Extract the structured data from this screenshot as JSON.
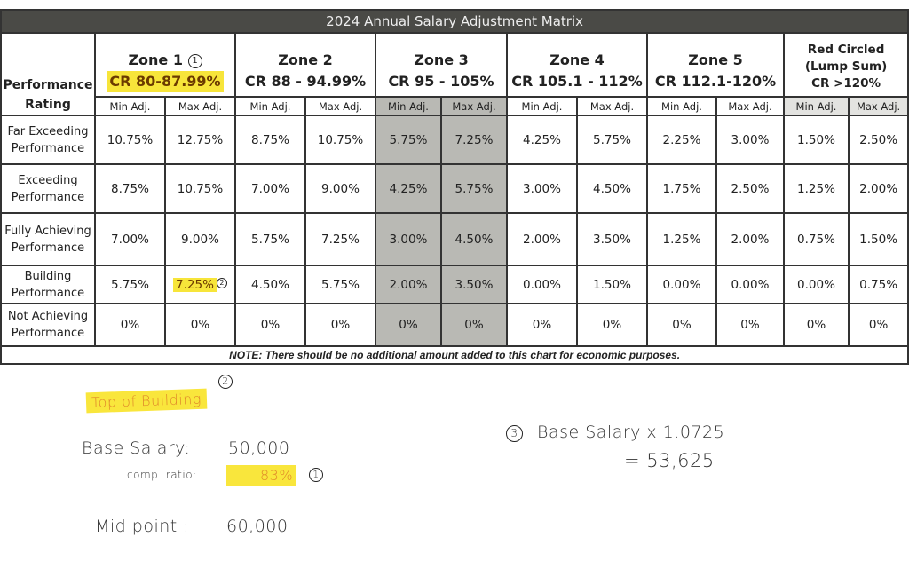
{
  "title": "2024 Annual Salary Adjustment Matrix",
  "performance_header": [
    "Performance",
    "Rating"
  ],
  "min_label": "Min Adj.",
  "max_label": "Max Adj.",
  "zones": [
    {
      "name": "Zone 1",
      "cr": "CR 80-87.99%",
      "annotation": "1"
    },
    {
      "name": "Zone 2",
      "cr": "CR 88 - 94.99%"
    },
    {
      "name": "Zone 3",
      "cr": "CR 95 - 105%"
    },
    {
      "name": "Zone 4",
      "cr": "CR 105.1 - 112%"
    },
    {
      "name": "Zone 5",
      "cr": "CR 112.1-120%"
    },
    {
      "name": "Red Circled",
      "name2": "(Lump Sum)",
      "cr": "CR >120%"
    }
  ],
  "rows": [
    {
      "label": [
        "Far Exceeding",
        "Performance"
      ],
      "values": [
        "10.75%",
        "12.75%",
        "8.75%",
        "10.75%",
        "5.75%",
        "7.25%",
        "4.25%",
        "5.75%",
        "2.25%",
        "3.00%",
        "1.50%",
        "2.50%"
      ]
    },
    {
      "label": [
        "Exceeding",
        "Performance"
      ],
      "values": [
        "8.75%",
        "10.75%",
        "7.00%",
        "9.00%",
        "4.25%",
        "5.75%",
        "3.00%",
        "4.50%",
        "1.75%",
        "2.50%",
        "1.25%",
        "2.00%"
      ]
    },
    {
      "label": [
        "Fully Achieving",
        "Performance"
      ],
      "values": [
        "7.00%",
        "9.00%",
        "5.75%",
        "7.25%",
        "3.00%",
        "4.50%",
        "2.00%",
        "3.50%",
        "1.25%",
        "2.00%",
        "0.75%",
        "1.50%"
      ]
    },
    {
      "label": [
        "Building",
        "Performance"
      ],
      "values": [
        "5.75%",
        "7.25%",
        "4.50%",
        "5.75%",
        "2.00%",
        "3.50%",
        "0.00%",
        "1.50%",
        "0.00%",
        "0.00%",
        "0.00%",
        "0.75%"
      ],
      "highlight_index": 1,
      "annotation": "2"
    },
    {
      "label": [
        "Not Achieving",
        "Performance"
      ],
      "values": [
        "0%",
        "0%",
        "0%",
        "0%",
        "0%",
        "0%",
        "0%",
        "0%",
        "0%",
        "0%",
        "0%",
        "0%"
      ]
    }
  ],
  "note": "NOTE:  There should be no additional amount added to this chart for economic purposes.",
  "handwritten": {
    "top_of_building": "Top of Building",
    "marker2": "2",
    "base_salary_label": "Base Salary:",
    "base_salary_value": "50,000",
    "comp_ratio_label": "comp. ratio:",
    "comp_ratio_value": "83%",
    "marker1": "1",
    "midpoint_label": "Mid point :",
    "midpoint_value": "60,000",
    "marker3": "3",
    "formula": "Base Salary x 1.0725",
    "result": "= 53,625"
  },
  "colors": {
    "highlight": "#f7e53a",
    "title_bar": "#4a4a46",
    "zone3_fill": "#b9b9b4"
  }
}
